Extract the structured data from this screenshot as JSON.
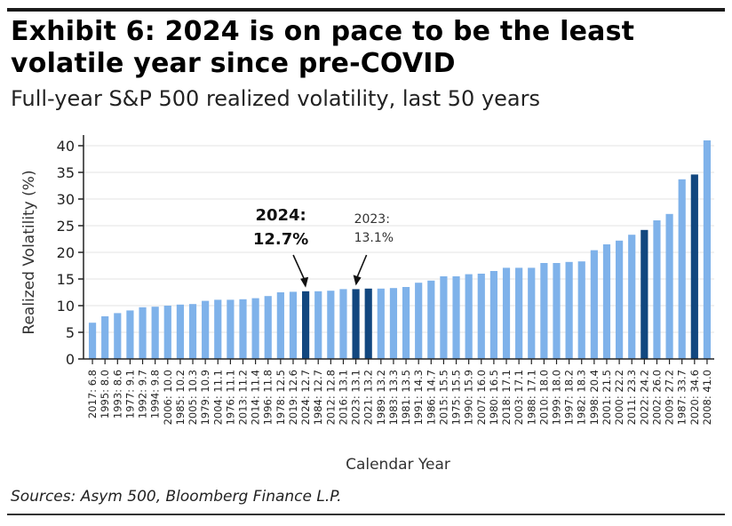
{
  "header": {
    "title": "Exhibit 6: 2024 is on pace to be the least volatile year since pre-COVID",
    "subtitle": "Full-year S&P 500 realized volatility, last 50 years"
  },
  "footer": {
    "source": "Sources: Asym 500, Bloomberg Finance L.P."
  },
  "colors": {
    "default_bar": "#7fb2ea",
    "highlight_bar": "#12477f",
    "grid": "#e3e3e3",
    "axis": "#222222"
  },
  "chart_data": {
    "type": "bar",
    "title": "Full-year S&P 500 realized volatility, last 50 years",
    "xlabel": "Calendar Year",
    "ylabel": "Realized Volatility (%)",
    "ylim": [
      0,
      42
    ],
    "yticks": [
      0,
      5,
      10,
      15,
      20,
      25,
      30,
      35,
      40
    ],
    "grid": "horizontal",
    "categories": [
      "2017",
      "1995",
      "1993",
      "1977",
      "1992",
      "1994",
      "2006",
      "1985",
      "2005",
      "1979",
      "2004",
      "1976",
      "2013",
      "2014",
      "1996",
      "1978",
      "2019",
      "2024",
      "1984",
      "2012",
      "2016",
      "2023",
      "2021",
      "1989",
      "1983",
      "1981",
      "1991",
      "1986",
      "2015",
      "1975",
      "1990",
      "2007",
      "1980",
      "2018",
      "2003",
      "1988",
      "2010",
      "1999",
      "1997",
      "1982",
      "1998",
      "2001",
      "2000",
      "2011",
      "2022",
      "2002",
      "2009",
      "1987",
      "2020",
      "2008"
    ],
    "values": [
      6.8,
      8.0,
      8.6,
      9.1,
      9.7,
      9.8,
      10.0,
      10.2,
      10.3,
      10.9,
      11.1,
      11.1,
      11.2,
      11.4,
      11.8,
      12.5,
      12.6,
      12.7,
      12.7,
      12.8,
      13.1,
      13.1,
      13.2,
      13.2,
      13.3,
      13.5,
      14.3,
      14.7,
      15.5,
      15.5,
      15.9,
      16.0,
      16.5,
      17.1,
      17.1,
      17.1,
      18.0,
      18.0,
      18.2,
      18.3,
      20.4,
      21.5,
      22.2,
      23.3,
      24.2,
      26.0,
      27.2,
      33.7,
      34.6,
      41.0
    ],
    "highlighted": [
      "2024",
      "2023",
      "2021",
      "2022",
      "2020"
    ],
    "annotations": [
      {
        "target": "2024",
        "line1": "2024:",
        "line2": "12.7%",
        "bold": true
      },
      {
        "target": "2023",
        "line1": "2023:",
        "line2": "13.1%",
        "bold": false
      }
    ]
  }
}
